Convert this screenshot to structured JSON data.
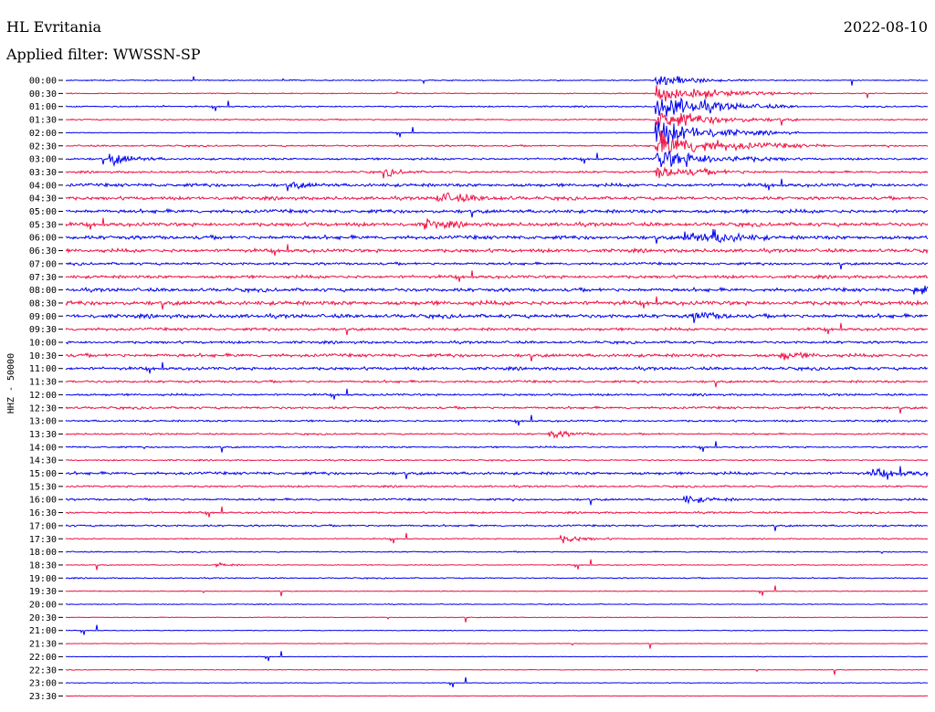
{
  "header": {
    "station": "HL Evritania",
    "date": "2022-08-10",
    "filter": "Applied filter: WWSSN-SP"
  },
  "channel_label": "HHZ - 50000",
  "colors": {
    "trace_a": "#0000ee",
    "trace_b": "#ee1144",
    "background": "#ffffff",
    "text": "#000000"
  },
  "chart_data": {
    "type": "line",
    "title": "HL Evritania",
    "date": "2022-08-10",
    "filter": "WWSSN-SP",
    "ylabel": "HHZ - 50000",
    "line_interval_minutes": 30,
    "rows": [
      "00:00",
      "00:30",
      "01:00",
      "01:30",
      "02:00",
      "02:30",
      "03:00",
      "03:30",
      "04:00",
      "04:30",
      "05:00",
      "05:30",
      "06:00",
      "06:30",
      "07:00",
      "07:30",
      "08:00",
      "08:30",
      "09:00",
      "09:30",
      "10:00",
      "10:30",
      "11:00",
      "11:30",
      "12:00",
      "12:30",
      "13:00",
      "13:30",
      "14:00",
      "14:30",
      "15:00",
      "15:30",
      "16:00",
      "16:30",
      "17:00",
      "17:30",
      "18:00",
      "18:30",
      "19:00",
      "19:30",
      "20:00",
      "20:30",
      "21:00",
      "21:30",
      "22:00",
      "22:30",
      "23:00",
      "23:30"
    ],
    "row_colors": [
      "blue",
      "red"
    ],
    "row_noise": [
      0.22,
      0.2,
      0.3,
      0.28,
      0.2,
      0.35,
      0.45,
      0.45,
      0.7,
      0.7,
      0.75,
      0.8,
      0.8,
      0.75,
      0.55,
      0.65,
      0.75,
      0.9,
      0.8,
      0.6,
      0.55,
      0.7,
      0.65,
      0.5,
      0.45,
      0.5,
      0.4,
      0.35,
      0.35,
      0.3,
      0.6,
      0.4,
      0.45,
      0.4,
      0.4,
      0.25,
      0.25,
      0.2,
      0.25,
      0.18,
      0.18,
      0.15,
      0.15,
      0.15,
      0.12,
      0.15,
      0.15,
      0.12
    ],
    "events": [
      {
        "row": 0,
        "minute": 20.5,
        "amplitude": 3.0,
        "duration": 3.5
      },
      {
        "row": 1,
        "minute": 20.5,
        "amplitude": 4.0,
        "duration": 5.5
      },
      {
        "row": 2,
        "minute": 20.5,
        "amplitude": 6.0,
        "duration": 5.0
      },
      {
        "row": 3,
        "minute": 20.5,
        "amplitude": 5.0,
        "duration": 5.0
      },
      {
        "row": 4,
        "minute": 20.5,
        "amplitude": 6.0,
        "duration": 5.0
      },
      {
        "row": 5,
        "minute": 20.5,
        "amplitude": 6.0,
        "duration": 6.0
      },
      {
        "row": 6,
        "minute": 20.5,
        "amplitude": 5.0,
        "duration": 5.0
      },
      {
        "row": 7,
        "minute": 20.5,
        "amplitude": 3.0,
        "duration": 4.0
      },
      {
        "row": 6,
        "minute": 1.5,
        "amplitude": 3.0,
        "duration": 2.0
      },
      {
        "row": 7,
        "minute": 11.0,
        "amplitude": 2.0,
        "duration": 1.5
      },
      {
        "row": 8,
        "minute": 7.8,
        "amplitude": 1.5,
        "duration": 1.5
      },
      {
        "row": 9,
        "minute": 12.9,
        "amplitude": 2.5,
        "duration": 3.0
      },
      {
        "row": 11,
        "minute": 12.4,
        "amplitude": 2.5,
        "duration": 2.0
      },
      {
        "row": 12,
        "minute": 21.5,
        "amplitude": 2.5,
        "duration": 3.0
      },
      {
        "row": 12,
        "minute": 22.5,
        "amplitude": 2.5,
        "duration": 2.0
      },
      {
        "row": 16,
        "minute": 29.5,
        "amplitude": 2.5,
        "duration": 2.0
      },
      {
        "row": 18,
        "minute": 21.8,
        "amplitude": 2.5,
        "duration": 2.0
      },
      {
        "row": 21,
        "minute": 24.8,
        "amplitude": 2.0,
        "duration": 2.0
      },
      {
        "row": 27,
        "minute": 16.8,
        "amplitude": 2.0,
        "duration": 2.0
      },
      {
        "row": 30,
        "minute": 28.0,
        "amplitude": 2.0,
        "duration": 3.0
      },
      {
        "row": 32,
        "minute": 21.5,
        "amplitude": 2.0,
        "duration": 2.0
      },
      {
        "row": 35,
        "minute": 17.2,
        "amplitude": 2.0,
        "duration": 2.0
      },
      {
        "row": 37,
        "minute": 5.2,
        "amplitude": 1.5,
        "duration": 1.0
      }
    ]
  }
}
